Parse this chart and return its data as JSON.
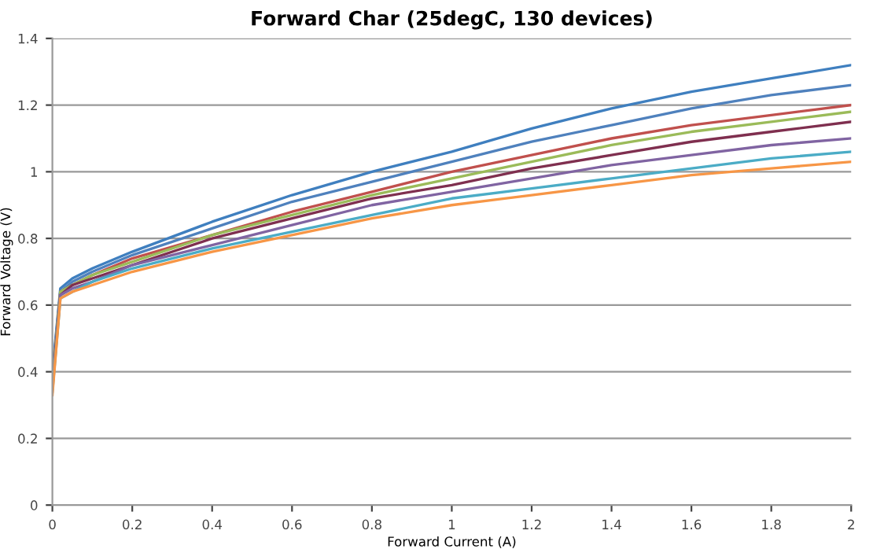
{
  "chart_data": {
    "type": "line",
    "title": "Forward Char (25degC, 130 devices)",
    "xlabel": "Forward Current (A)",
    "ylabel": "Forward Voltage (V)",
    "x": [
      0,
      0.02,
      0.05,
      0.1,
      0.2,
      0.4,
      0.6,
      0.8,
      1,
      1.2,
      1.4,
      1.6,
      1.8,
      2
    ],
    "series": [
      {
        "color": "#3f7fbf",
        "values": [
          0.4,
          0.65,
          0.68,
          0.71,
          0.76,
          0.85,
          0.93,
          1.0,
          1.06,
          1.13,
          1.19,
          1.24,
          1.28,
          1.32
        ]
      },
      {
        "color": "#4f81bd",
        "values": [
          0.39,
          0.64,
          0.67,
          0.7,
          0.75,
          0.83,
          0.91,
          0.97,
          1.03,
          1.09,
          1.14,
          1.19,
          1.23,
          1.26
        ]
      },
      {
        "color": "#c0504d",
        "values": [
          0.37,
          0.64,
          0.66,
          0.69,
          0.74,
          0.81,
          0.88,
          0.94,
          1.0,
          1.05,
          1.1,
          1.14,
          1.17,
          1.2
        ]
      },
      {
        "color": "#9bbb59",
        "values": [
          0.37,
          0.64,
          0.66,
          0.69,
          0.73,
          0.81,
          0.87,
          0.93,
          0.98,
          1.03,
          1.08,
          1.12,
          1.15,
          1.18
        ]
      },
      {
        "color": "#7f2f4f",
        "values": [
          0.36,
          0.63,
          0.66,
          0.68,
          0.72,
          0.8,
          0.86,
          0.92,
          0.96,
          1.01,
          1.05,
          1.09,
          1.12,
          1.15
        ]
      },
      {
        "color": "#8064a2",
        "values": [
          0.35,
          0.63,
          0.65,
          0.67,
          0.72,
          0.78,
          0.84,
          0.9,
          0.94,
          0.98,
          1.02,
          1.05,
          1.08,
          1.1
        ]
      },
      {
        "color": "#4bacc6",
        "values": [
          0.34,
          0.62,
          0.64,
          0.67,
          0.71,
          0.77,
          0.82,
          0.87,
          0.92,
          0.95,
          0.98,
          1.01,
          1.04,
          1.06
        ]
      },
      {
        "color": "#f79646",
        "values": [
          0.33,
          0.62,
          0.64,
          0.66,
          0.7,
          0.76,
          0.81,
          0.86,
          0.9,
          0.93,
          0.96,
          0.99,
          1.01,
          1.03
        ]
      }
    ],
    "xlim": [
      0,
      2
    ],
    "ylim": [
      0,
      1.4
    ],
    "xticks": [
      0,
      0.2,
      0.4,
      0.6,
      0.8,
      1,
      1.2,
      1.4,
      1.6,
      1.8,
      2
    ],
    "yticks": [
      0,
      0.2,
      0.4,
      0.6,
      0.8,
      1,
      1.2,
      1.4
    ],
    "grid": "y",
    "legend": false,
    "marker": "none",
    "line_style": "solid"
  }
}
